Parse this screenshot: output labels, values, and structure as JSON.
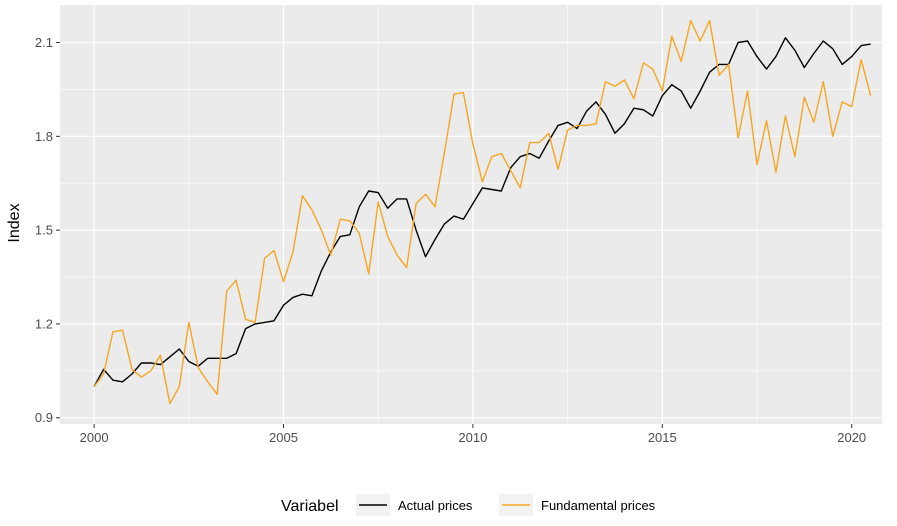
{
  "chart_data": {
    "type": "line",
    "xlabel": "",
    "ylabel": "Index",
    "xlim": [
      1999.1,
      2020.8
    ],
    "ylim": [
      0.88,
      2.22
    ],
    "x_ticks": [
      2000,
      2005,
      2010,
      2015,
      2020
    ],
    "x_tick_labels": [
      "2000",
      "2005",
      "2010",
      "2015",
      "2020"
    ],
    "y_ticks": [
      0.9,
      1.2,
      1.5,
      1.8,
      2.1
    ],
    "y_tick_labels": [
      "0.9",
      "1.2",
      "1.5",
      "1.8",
      "2.1"
    ],
    "grid": true,
    "legend": {
      "title": "Variabel",
      "position": "bottom"
    },
    "x": [
      2000.0,
      2000.25,
      2000.5,
      2000.75,
      2001.0,
      2001.25,
      2001.5,
      2001.75,
      2002.0,
      2002.25,
      2002.5,
      2002.75,
      2003.0,
      2003.25,
      2003.5,
      2003.75,
      2004.0,
      2004.25,
      2004.5,
      2004.75,
      2005.0,
      2005.25,
      2005.5,
      2005.75,
      2006.0,
      2006.25,
      2006.5,
      2006.75,
      2007.0,
      2007.25,
      2007.5,
      2007.75,
      2008.0,
      2008.25,
      2008.5,
      2008.75,
      2009.0,
      2009.25,
      2009.5,
      2009.75,
      2010.0,
      2010.25,
      2010.5,
      2010.75,
      2011.0,
      2011.25,
      2011.5,
      2011.75,
      2012.0,
      2012.25,
      2012.5,
      2012.75,
      2013.0,
      2013.25,
      2013.5,
      2013.75,
      2014.0,
      2014.25,
      2014.5,
      2014.75,
      2015.0,
      2015.25,
      2015.5,
      2015.75,
      2016.0,
      2016.25,
      2016.5,
      2016.75,
      2017.0,
      2017.25,
      2017.5,
      2017.75,
      2018.0,
      2018.25,
      2018.5,
      2018.75,
      2019.0,
      2019.25,
      2019.5,
      2019.75,
      2020.0,
      2020.25,
      2020.5
    ],
    "series": [
      {
        "name": "Actual prices",
        "color": "#000000",
        "values": [
          1.0,
          1.055,
          1.02,
          1.015,
          1.04,
          1.075,
          1.075,
          1.07,
          1.095,
          1.12,
          1.08,
          1.065,
          1.09,
          1.09,
          1.09,
          1.105,
          1.185,
          1.2,
          1.205,
          1.21,
          1.26,
          1.285,
          1.295,
          1.29,
          1.37,
          1.43,
          1.48,
          1.485,
          1.575,
          1.625,
          1.62,
          1.57,
          1.6,
          1.6,
          1.5,
          1.415,
          1.47,
          1.52,
          1.545,
          1.535,
          1.585,
          1.635,
          1.63,
          1.625,
          1.7,
          1.735,
          1.745,
          1.73,
          1.785,
          1.835,
          1.845,
          1.825,
          1.88,
          1.91,
          1.87,
          1.81,
          1.84,
          1.89,
          1.885,
          1.865,
          1.93,
          1.965,
          1.945,
          1.89,
          1.945,
          2.005,
          2.03,
          2.03,
          2.1,
          2.105,
          2.055,
          2.015,
          2.055,
          2.115,
          2.075,
          2.02,
          2.065,
          2.105,
          2.08,
          2.03,
          2.055,
          2.09,
          2.095
        ]
      },
      {
        "name": "Fundamental prices",
        "color": "#F5A623",
        "values": [
          1.0,
          1.04,
          1.175,
          1.18,
          1.055,
          1.03,
          1.05,
          1.1,
          0.945,
          1.0,
          1.205,
          1.06,
          1.015,
          0.975,
          1.305,
          1.34,
          1.215,
          1.205,
          1.41,
          1.435,
          1.335,
          1.43,
          1.61,
          1.565,
          1.5,
          1.42,
          1.535,
          1.53,
          1.49,
          1.36,
          1.59,
          1.48,
          1.42,
          1.38,
          1.585,
          1.615,
          1.575,
          1.75,
          1.935,
          1.94,
          1.775,
          1.655,
          1.735,
          1.745,
          1.69,
          1.635,
          1.78,
          1.78,
          1.81,
          1.695,
          1.82,
          1.835,
          1.835,
          1.84,
          1.975,
          1.96,
          1.98,
          1.92,
          2.035,
          2.015,
          1.945,
          2.12,
          2.04,
          2.17,
          2.105,
          2.17,
          1.995,
          2.03,
          1.795,
          1.945,
          1.71,
          1.85,
          1.685,
          1.865,
          1.735,
          1.925,
          1.845,
          1.975,
          1.8,
          1.91,
          1.895,
          2.045,
          1.93
        ]
      }
    ]
  }
}
